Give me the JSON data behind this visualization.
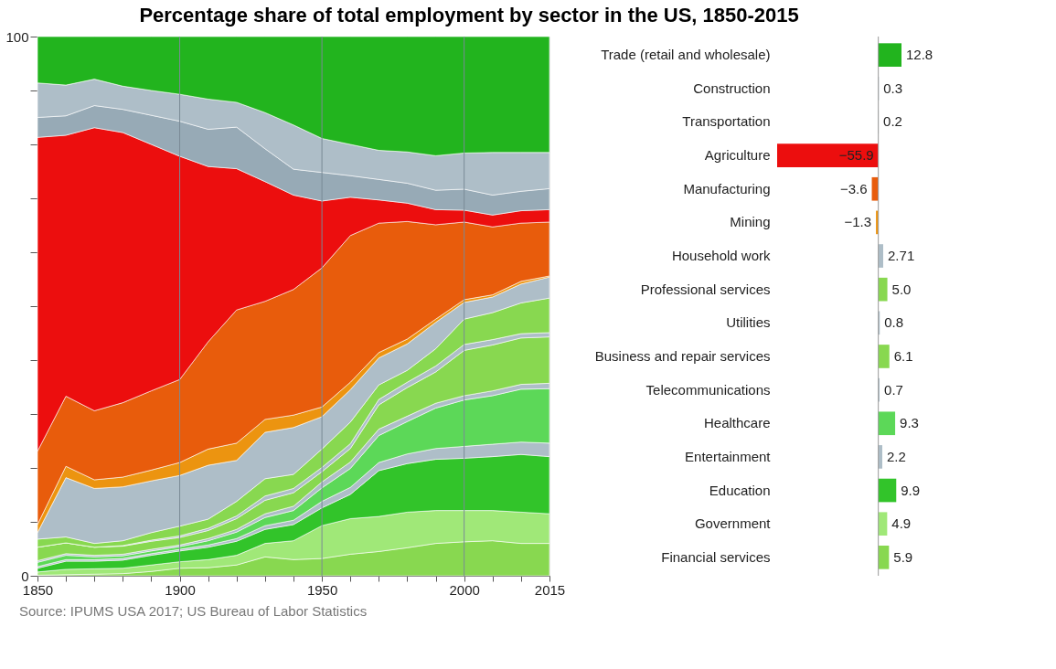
{
  "chart_data": [
    {
      "type": "area",
      "title": "Percentage share of total employment by sector in the US, 1850-2015",
      "annotations": [
        "Source: IPUMS USA 2017; US Bureau of Labor Statistics"
      ],
      "stacked": true,
      "categories": [
        "1850",
        null,
        null,
        null,
        null,
        "1900",
        null,
        null,
        null,
        null,
        "1950",
        null,
        null,
        null,
        null,
        "2000",
        null,
        null,
        "2015"
      ],
      "ylim": [
        0,
        100
      ],
      "yticks": [
        0,
        {
          "value": 10,
          "label": null
        },
        {
          "value": 20,
          "label": null
        },
        {
          "value": 30,
          "label": null
        },
        {
          "value": 40,
          "label": null
        },
        {
          "value": 50,
          "label": null
        },
        {
          "value": 60,
          "label": null
        },
        {
          "value": 70,
          "label": null
        },
        {
          "value": 80,
          "label": null
        },
        {
          "value": 90,
          "label": null
        },
        100
      ],
      "grid": "x",
      "series": [
        {
          "color": "#88d850",
          "values": [
            0.1,
            0.2,
            0.3,
            0.4,
            0.8,
            1.4,
            1.5,
            2.0,
            3.5,
            3.0,
            3.2,
            4.0,
            4.5,
            5.2,
            6.0,
            6.3,
            6.5,
            6.0,
            6.0
          ]
        },
        {
          "color": "#a0e878",
          "values": [
            0.6,
            1.0,
            1.0,
            1.0,
            1.2,
            1.2,
            1.5,
            1.8,
            2.5,
            3.5,
            6.1,
            6.6,
            6.5,
            6.6,
            6.1,
            5.8,
            5.6,
            5.8,
            5.5
          ]
        },
        {
          "color": "#32c42a",
          "values": [
            0.7,
            1.5,
            1.4,
            1.5,
            1.8,
            2.0,
            2.3,
            2.6,
            2.6,
            3.0,
            3.3,
            4.5,
            8.5,
            9.0,
            9.5,
            9.7,
            10.0,
            10.7,
            10.6
          ]
        },
        {
          "color": "#aebec8",
          "values": [
            0.3,
            0.3,
            0.3,
            0.3,
            0.3,
            0.3,
            0.4,
            0.5,
            0.7,
            0.8,
            1.2,
            1.3,
            1.5,
            1.8,
            2.0,
            2.2,
            2.3,
            2.3,
            2.5
          ]
        },
        {
          "color": "#5cd858",
          "values": [
            0.8,
            0.8,
            0.5,
            0.5,
            0.5,
            0.5,
            0.8,
            1.2,
            1.5,
            1.8,
            2.5,
            3.5,
            5.0,
            6.0,
            7.5,
            8.6,
            9.0,
            9.8,
            10.1
          ]
        },
        {
          "color": "#aebec8",
          "values": [
            0.3,
            0.3,
            0.3,
            0.3,
            0.3,
            0.3,
            0.4,
            0.5,
            0.7,
            0.8,
            1.1,
            1.2,
            1.2,
            1.0,
            0.9,
            0.8,
            0.9,
            0.9,
            1.0
          ]
        },
        {
          "color": "#88d850",
          "values": [
            2.5,
            2.0,
            1.5,
            1.5,
            1.5,
            1.4,
            1.5,
            2.0,
            2.5,
            2.5,
            1.9,
            2.5,
            4.5,
            5.3,
            5.8,
            8.4,
            8.5,
            8.6,
            8.6
          ]
        },
        {
          "color": "#aebec8",
          "values": [
            0.0,
            0.0,
            0.0,
            0.1,
            0.2,
            0.3,
            0.4,
            0.5,
            0.8,
            0.8,
            0.8,
            0.9,
            1.0,
            1.0,
            1.1,
            1.1,
            1.0,
            0.8,
            0.8
          ]
        },
        {
          "color": "#88d850",
          "values": [
            1.5,
            1.1,
            0.7,
            0.9,
            1.4,
            1.8,
            1.7,
            2.7,
            3.2,
            2.6,
            3.4,
            4.0,
            2.7,
            2.2,
            3.2,
            4.7,
            5.0,
            5.7,
            6.4
          ]
        },
        {
          "color": "#aebec8",
          "values": [
            1.2,
            11.0,
            10.2,
            10.0,
            9.6,
            9.4,
            10.0,
            7.6,
            8.6,
            8.7,
            6.0,
            6.0,
            5.0,
            4.9,
            4.9,
            3.1,
            2.9,
            3.5,
            3.9
          ]
        },
        {
          "color": "#ec9410",
          "values": [
            1.5,
            2.1,
            1.6,
            1.8,
            2.0,
            2.4,
            3.0,
            3.2,
            2.4,
            2.3,
            1.8,
            1.4,
            1.0,
            0.9,
            0.6,
            0.5,
            0.4,
            0.5,
            0.2
          ]
        },
        {
          "color": "#e85c0c",
          "values": [
            13.6,
            13.0,
            12.8,
            13.8,
            14.7,
            15.4,
            19.9,
            24.7,
            21.9,
            23.3,
            25.8,
            27.2,
            24.0,
            21.8,
            17.5,
            14.4,
            12.6,
            10.8,
            10.0
          ]
        },
        {
          "color": "#ec0e0e",
          "values": [
            58.2,
            48.4,
            52.5,
            50.1,
            45.7,
            41.4,
            32.5,
            26.2,
            22.2,
            17.5,
            12.4,
            7.1,
            4.3,
            3.4,
            2.8,
            2.2,
            2.2,
            2.3,
            2.3
          ]
        },
        {
          "color": "#97aab6",
          "values": [
            3.7,
            3.6,
            4.1,
            4.3,
            5.4,
            6.5,
            6.9,
            7.7,
            6.1,
            4.8,
            5.3,
            4.0,
            3.8,
            3.7,
            3.6,
            3.9,
            3.7,
            3.6,
            3.9
          ]
        },
        {
          "color": "#aebec8",
          "values": [
            6.4,
            5.7,
            4.9,
            4.3,
            4.6,
            5.0,
            5.6,
            4.6,
            6.7,
            8.2,
            6.3,
            5.8,
            5.4,
            5.8,
            6.4,
            6.7,
            7.9,
            7.2,
            6.7
          ]
        },
        {
          "color": "#22b41e",
          "values": [
            8.6,
            9.0,
            7.9,
            9.2,
            10.0,
            10.7,
            11.6,
            12.2,
            14.1,
            16.4,
            18.9,
            20.0,
            21.1,
            21.4,
            22.1,
            21.6,
            21.5,
            21.5,
            21.5
          ]
        }
      ]
    },
    {
      "type": "bar",
      "orientation": "horizontal",
      "categories": [
        "Trade (retail and wholesale)",
        "Construction",
        "Transportation",
        "Agriculture",
        "Manufacturing",
        "Mining",
        "Household work",
        "Professional services",
        "Utilities",
        "Business and repair services",
        "Telecommunications",
        "Healthcare",
        "Entertainment",
        "Education",
        "Government",
        "Financial services"
      ],
      "values": [
        12.8,
        0.3,
        0.2,
        -55.9,
        -3.6,
        -1.3,
        2.71,
        5.0,
        0.8,
        6.1,
        0.7,
        9.3,
        2.2,
        9.9,
        4.9,
        5.9
      ],
      "value_labels": [
        "12.8",
        "0.3",
        "0.2",
        "−55.9",
        "−3.6",
        "−1.3",
        "2.71",
        "5.0",
        "0.8",
        "6.1",
        "0.7",
        "9.3",
        "2.2",
        "9.9",
        "4.9",
        "5.9"
      ],
      "colors": [
        "#22b41e",
        "#aebec8",
        "#97aab6",
        "#ec0e0e",
        "#e85c0c",
        "#ec9410",
        "#aebec8",
        "#88d850",
        "#aebec8",
        "#88d850",
        "#aebec8",
        "#5cd858",
        "#aebec8",
        "#32c42a",
        "#a0e878",
        "#88d850"
      ]
    }
  ]
}
